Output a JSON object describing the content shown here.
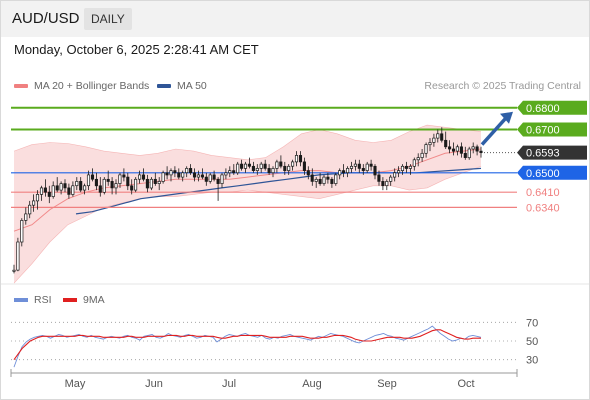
{
  "header": {
    "symbol": "AUD/USD",
    "timeframe": "DAILY"
  },
  "timestamp": "Monday, October 6, 2025 2:28:41 AM CET",
  "legend": {
    "bollinger": {
      "label": "MA 20 + Bollinger Bands",
      "color": "#f08080"
    },
    "ma50": {
      "label": "MA 50",
      "color": "#2f5597"
    },
    "credit": "Research © 2025 Trading Central"
  },
  "rsi_legend": {
    "rsi": {
      "label": "RSI",
      "color": "#6f8fd8"
    },
    "ma9": {
      "label": "9MA",
      "color": "#e02020"
    }
  },
  "colors": {
    "up_candle": "#ffffff",
    "down_candle": "#1a1a1a",
    "resistance": "#5aab1e",
    "support_blue": "#1e64e6",
    "support_red": "#f08080",
    "current": "#333333",
    "arrow": "#2f5fa6",
    "band_fill": "#fadada"
  },
  "levels": [
    {
      "value": 0.68,
      "label": "0.6800",
      "kind": "resistance"
    },
    {
      "value": 0.67,
      "label": "0.6700",
      "kind": "resistance"
    },
    {
      "value": 0.6593,
      "label": "0.6593",
      "kind": "current"
    },
    {
      "value": 0.65,
      "label": "0.6500",
      "kind": "pivot"
    },
    {
      "value": 0.641,
      "label": "0.6410",
      "kind": "support"
    },
    {
      "value": 0.634,
      "label": "0.6340",
      "kind": "support"
    }
  ],
  "chart_data": [
    {
      "type": "candlestick",
      "title": "AUD/USD",
      "price_range": [
        0.6,
        0.685
      ],
      "x_labels": [
        "May",
        "Jun",
        "Jul",
        "Aug",
        "Sep",
        "Oct"
      ],
      "ohlc": [
        [
          0.6045,
          0.6075,
          0.6035,
          0.605
        ],
        [
          0.605,
          0.62,
          0.6045,
          0.618
        ],
        [
          0.618,
          0.629,
          0.616,
          0.628
        ],
        [
          0.628,
          0.634,
          0.626,
          0.631
        ],
        [
          0.631,
          0.637,
          0.629,
          0.635
        ],
        [
          0.635,
          0.64,
          0.632,
          0.637
        ],
        [
          0.637,
          0.642,
          0.633,
          0.64
        ],
        [
          0.64,
          0.644,
          0.637,
          0.643
        ],
        [
          0.643,
          0.647,
          0.639,
          0.641
        ],
        [
          0.641,
          0.644,
          0.636,
          0.639
        ],
        [
          0.639,
          0.646,
          0.638,
          0.644
        ],
        [
          0.644,
          0.648,
          0.641,
          0.642
        ],
        [
          0.642,
          0.646,
          0.64,
          0.645
        ],
        [
          0.645,
          0.647,
          0.641,
          0.643
        ],
        [
          0.643,
          0.645,
          0.638,
          0.64
        ],
        [
          0.64,
          0.646,
          0.639,
          0.644
        ],
        [
          0.644,
          0.648,
          0.642,
          0.646
        ],
        [
          0.646,
          0.648,
          0.641,
          0.642
        ],
        [
          0.642,
          0.645,
          0.64,
          0.644
        ],
        [
          0.644,
          0.651,
          0.642,
          0.649
        ],
        [
          0.649,
          0.652,
          0.646,
          0.647
        ],
        [
          0.647,
          0.65,
          0.642,
          0.644
        ],
        [
          0.644,
          0.648,
          0.639,
          0.641
        ],
        [
          0.641,
          0.648,
          0.64,
          0.647
        ],
        [
          0.647,
          0.651,
          0.644,
          0.646
        ],
        [
          0.646,
          0.648,
          0.64,
          0.643
        ],
        [
          0.643,
          0.647,
          0.64,
          0.645
        ],
        [
          0.645,
          0.65,
          0.643,
          0.649
        ],
        [
          0.649,
          0.652,
          0.646,
          0.648
        ],
        [
          0.648,
          0.65,
          0.642,
          0.644
        ],
        [
          0.644,
          0.647,
          0.64,
          0.642
        ],
        [
          0.642,
          0.648,
          0.641,
          0.647
        ],
        [
          0.647,
          0.651,
          0.645,
          0.649
        ],
        [
          0.649,
          0.652,
          0.646,
          0.647
        ],
        [
          0.647,
          0.649,
          0.641,
          0.643
        ],
        [
          0.643,
          0.648,
          0.642,
          0.647
        ],
        [
          0.647,
          0.65,
          0.644,
          0.645
        ],
        [
          0.645,
          0.648,
          0.642,
          0.646
        ],
        [
          0.646,
          0.651,
          0.645,
          0.65
        ],
        [
          0.65,
          0.653,
          0.647,
          0.649
        ],
        [
          0.649,
          0.652,
          0.646,
          0.651
        ],
        [
          0.651,
          0.653,
          0.648,
          0.65
        ],
        [
          0.65,
          0.652,
          0.647,
          0.648
        ],
        [
          0.648,
          0.651,
          0.646,
          0.65
        ],
        [
          0.65,
          0.653,
          0.648,
          0.652
        ],
        [
          0.652,
          0.654,
          0.649,
          0.65
        ],
        [
          0.65,
          0.652,
          0.646,
          0.648
        ],
        [
          0.648,
          0.651,
          0.646,
          0.649
        ],
        [
          0.649,
          0.652,
          0.647,
          0.648
        ],
        [
          0.648,
          0.65,
          0.644,
          0.646
        ],
        [
          0.646,
          0.65,
          0.645,
          0.649
        ],
        [
          0.649,
          0.651,
          0.646,
          0.647
        ],
        [
          0.647,
          0.648,
          0.637,
          0.645
        ],
        [
          0.645,
          0.65,
          0.643,
          0.649
        ],
        [
          0.649,
          0.652,
          0.647,
          0.65
        ],
        [
          0.65,
          0.653,
          0.648,
          0.651
        ],
        [
          0.651,
          0.654,
          0.649,
          0.65
        ],
        [
          0.65,
          0.655,
          0.649,
          0.654
        ],
        [
          0.654,
          0.656,
          0.651,
          0.652
        ],
        [
          0.652,
          0.655,
          0.65,
          0.654
        ],
        [
          0.654,
          0.657,
          0.652,
          0.653
        ],
        [
          0.653,
          0.655,
          0.65,
          0.651
        ],
        [
          0.651,
          0.654,
          0.649,
          0.652
        ],
        [
          0.652,
          0.655,
          0.65,
          0.654
        ],
        [
          0.654,
          0.656,
          0.651,
          0.652
        ],
        [
          0.652,
          0.654,
          0.649,
          0.65
        ],
        [
          0.65,
          0.653,
          0.648,
          0.652
        ],
        [
          0.652,
          0.656,
          0.65,
          0.655
        ],
        [
          0.655,
          0.658,
          0.652,
          0.653
        ],
        [
          0.653,
          0.655,
          0.649,
          0.651
        ],
        [
          0.651,
          0.654,
          0.649,
          0.653
        ],
        [
          0.653,
          0.656,
          0.651,
          0.655
        ],
        [
          0.655,
          0.66,
          0.653,
          0.658
        ],
        [
          0.658,
          0.66,
          0.653,
          0.655
        ],
        [
          0.655,
          0.657,
          0.649,
          0.651
        ],
        [
          0.651,
          0.653,
          0.647,
          0.649
        ],
        [
          0.649,
          0.652,
          0.644,
          0.646
        ],
        [
          0.646,
          0.648,
          0.643,
          0.647
        ],
        [
          0.647,
          0.65,
          0.644,
          0.645
        ],
        [
          0.645,
          0.649,
          0.644,
          0.648
        ],
        [
          0.648,
          0.65,
          0.645,
          0.647
        ],
        [
          0.647,
          0.648,
          0.643,
          0.645
        ],
        [
          0.645,
          0.65,
          0.644,
          0.649
        ],
        [
          0.649,
          0.652,
          0.647,
          0.651
        ],
        [
          0.651,
          0.654,
          0.648,
          0.65
        ],
        [
          0.65,
          0.653,
          0.648,
          0.652
        ],
        [
          0.652,
          0.655,
          0.65,
          0.653
        ],
        [
          0.653,
          0.656,
          0.651,
          0.654
        ],
        [
          0.654,
          0.656,
          0.65,
          0.652
        ],
        [
          0.652,
          0.654,
          0.649,
          0.651
        ],
        [
          0.651,
          0.655,
          0.65,
          0.654
        ],
        [
          0.654,
          0.656,
          0.651,
          0.653
        ],
        [
          0.653,
          0.654,
          0.647,
          0.649
        ],
        [
          0.649,
          0.651,
          0.644,
          0.646
        ],
        [
          0.646,
          0.648,
          0.642,
          0.644
        ],
        [
          0.644,
          0.647,
          0.642,
          0.646
        ],
        [
          0.646,
          0.649,
          0.644,
          0.648
        ],
        [
          0.648,
          0.652,
          0.646,
          0.65
        ],
        [
          0.65,
          0.653,
          0.648,
          0.651
        ],
        [
          0.651,
          0.654,
          0.649,
          0.653
        ],
        [
          0.653,
          0.655,
          0.65,
          0.652
        ],
        [
          0.652,
          0.654,
          0.649,
          0.653
        ],
        [
          0.653,
          0.657,
          0.651,
          0.656
        ],
        [
          0.656,
          0.659,
          0.653,
          0.657
        ],
        [
          0.657,
          0.661,
          0.655,
          0.659
        ],
        [
          0.659,
          0.664,
          0.657,
          0.663
        ],
        [
          0.663,
          0.666,
          0.66,
          0.664
        ],
        [
          0.664,
          0.668,
          0.662,
          0.666
        ],
        [
          0.666,
          0.67,
          0.664,
          0.668
        ],
        [
          0.668,
          0.671,
          0.664,
          0.665
        ],
        [
          0.665,
          0.669,
          0.661,
          0.662
        ],
        [
          0.662,
          0.665,
          0.659,
          0.661
        ],
        [
          0.661,
          0.664,
          0.658,
          0.66
        ],
        [
          0.66,
          0.663,
          0.658,
          0.662
        ],
        [
          0.662,
          0.664,
          0.657,
          0.659
        ],
        [
          0.659,
          0.662,
          0.656,
          0.657
        ],
        [
          0.657,
          0.662,
          0.656,
          0.661
        ],
        [
          0.661,
          0.664,
          0.659,
          0.662
        ],
        [
          0.662,
          0.663,
          0.658,
          0.66
        ],
        [
          0.66,
          0.662,
          0.657,
          0.6593
        ]
      ],
      "ma20_upper": [
        0.66,
        0.663,
        0.664,
        0.6635,
        0.662,
        0.66,
        0.659,
        0.658,
        0.659,
        0.661,
        0.66,
        0.658,
        0.657,
        0.656,
        0.657,
        0.662,
        0.668,
        0.67,
        0.668,
        0.665,
        0.664,
        0.665,
        0.669,
        0.672,
        0.671,
        0.67,
        0.669
      ],
      "ma20_mid": [
        0.623,
        0.626,
        0.633,
        0.638,
        0.641,
        0.643,
        0.644,
        0.645,
        0.646,
        0.647,
        0.647,
        0.647,
        0.647,
        0.648,
        0.649,
        0.65,
        0.651,
        0.651,
        0.65,
        0.65,
        0.65,
        0.651,
        0.653,
        0.656,
        0.659,
        0.66,
        0.661
      ],
      "ma20_lower": [
        0.599,
        0.608,
        0.618,
        0.626,
        0.63,
        0.634,
        0.636,
        0.638,
        0.639,
        0.639,
        0.64,
        0.641,
        0.641,
        0.642,
        0.641,
        0.64,
        0.639,
        0.638,
        0.64,
        0.642,
        0.644,
        0.644,
        0.642,
        0.643,
        0.647,
        0.65,
        0.653
      ],
      "ma50": [
        0.631,
        0.632,
        0.634,
        0.636,
        0.638,
        0.639,
        0.64,
        0.641,
        0.642,
        0.643,
        0.644,
        0.645,
        0.646,
        0.647,
        0.648,
        0.649,
        0.6495,
        0.65,
        0.65,
        0.65,
        0.65,
        0.65,
        0.6505,
        0.651,
        0.6515,
        0.652
      ],
      "levels": [
        0.68,
        0.67,
        0.6593,
        0.65,
        0.641,
        0.634
      ]
    },
    {
      "type": "line",
      "title": "RSI",
      "y_ticks": [
        70,
        50,
        30
      ],
      "ylim": [
        20,
        80
      ],
      "series": [
        {
          "name": "RSI",
          "values": [
            22,
            34,
            44,
            49,
            52,
            54,
            55,
            56,
            55,
            53,
            55,
            57,
            56,
            54,
            55,
            56,
            57,
            55,
            54,
            56,
            54,
            53,
            52,
            54,
            55,
            54,
            53,
            55,
            56,
            54,
            53,
            51,
            55,
            56,
            57,
            54,
            53,
            55,
            58,
            56,
            55,
            54,
            56,
            57,
            55,
            53,
            54,
            56,
            55,
            54,
            49,
            52,
            55,
            57,
            56,
            55,
            57,
            58,
            56,
            55,
            54,
            56,
            53,
            52,
            54,
            53,
            55,
            56,
            57,
            55,
            54,
            53,
            52,
            51,
            53,
            55,
            54,
            56,
            58,
            57,
            56,
            55,
            53,
            51,
            49,
            48,
            50,
            52,
            54,
            56,
            57,
            58,
            56,
            55,
            53,
            52,
            51,
            53,
            55,
            57,
            59,
            61,
            63,
            66,
            62,
            58,
            55,
            52,
            50,
            51,
            53,
            52,
            55,
            56,
            55,
            54
          ]
        },
        {
          "name": "9MA",
          "values": [
            30,
            36,
            42,
            46,
            50,
            52,
            54,
            55,
            55,
            55,
            55,
            55,
            55,
            55,
            55,
            55,
            56,
            56,
            55,
            55,
            55,
            55,
            54,
            54,
            54,
            54,
            54,
            54,
            55,
            55,
            54,
            54,
            54,
            55,
            55,
            55,
            55,
            55,
            56,
            56,
            56,
            55,
            55,
            56,
            56,
            55,
            55,
            55,
            55,
            55,
            54,
            53,
            53,
            54,
            55,
            55,
            56,
            56,
            56,
            56,
            56,
            56,
            55,
            54,
            54,
            54,
            54,
            54,
            55,
            55,
            55,
            55,
            54,
            53,
            53,
            53,
            54,
            54,
            55,
            56,
            56,
            56,
            55,
            54,
            52,
            51,
            50,
            50,
            50,
            51,
            52,
            53,
            54,
            54,
            54,
            54,
            53,
            53,
            53,
            54,
            55,
            57,
            59,
            61,
            62,
            62,
            60,
            58,
            56,
            54,
            53,
            52,
            52,
            53,
            53,
            53
          ]
        }
      ]
    }
  ]
}
